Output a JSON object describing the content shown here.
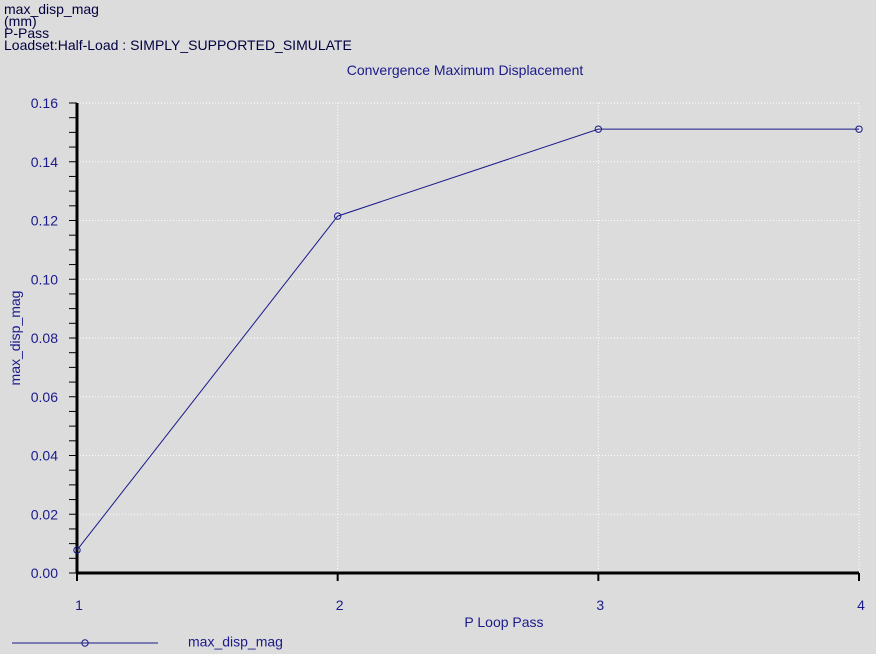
{
  "header": {
    "line1": "max_disp_mag",
    "line2": "(mm)",
    "line3": "P-Pass",
    "line4": "Loadset:Half-Load :   SIMPLY_SUPPORTED_SIMULATE"
  },
  "colors": {
    "background": "#dcdcdc",
    "series": "#1a1a8c",
    "axis": "#000000",
    "grid": "#ffffff"
  },
  "chart_data": {
    "type": "line",
    "title": "Convergence Maximum Displacement",
    "xlabel": "P Loop Pass",
    "ylabel": "max_disp_mag",
    "xlim": [
      1,
      4
    ],
    "ylim": [
      0,
      0.16
    ],
    "x_ticks": [
      "1",
      "2",
      "3",
      "4"
    ],
    "y_ticks": [
      "0.00",
      "0.02",
      "0.04",
      "0.06",
      "0.08",
      "0.10",
      "0.12",
      "0.14",
      "0.16"
    ],
    "grid": true,
    "legend_position": "bottom-left",
    "series": [
      {
        "name": "max_disp_mag",
        "x": [
          1,
          2,
          3,
          4
        ],
        "values": [
          0.0078,
          0.1215,
          0.1511,
          0.1511
        ]
      }
    ]
  }
}
